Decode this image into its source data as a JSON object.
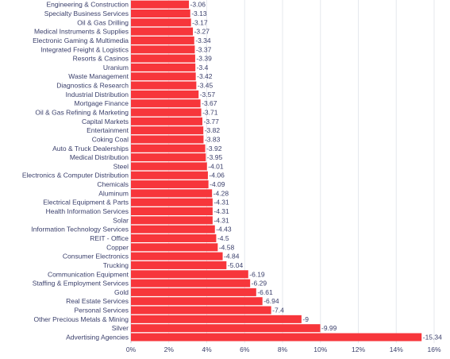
{
  "chart_data": {
    "type": "bar",
    "orientation": "horizontal",
    "categories": [
      "Engineering & Construction",
      "Specialty Business Services",
      "Oil & Gas Drilling",
      "Medical Instruments & Supplies",
      "Electronic Gaming & Multimedia",
      "Integrated Freight & Logistics",
      "Resorts & Casinos",
      "Uranium",
      "Waste Management",
      "Diagnostics & Research",
      "Industrial Distribution",
      "Mortgage Finance",
      "Oil & Gas Refining & Marketing",
      "Capital Markets",
      "Entertainment",
      "Coking Coal",
      "Auto & Truck Dealerships",
      "Medical Distribution",
      "Steel",
      "Electronics & Computer Distribution",
      "Chemicals",
      "Aluminum",
      "Electrical Equipment & Parts",
      "Health Information Services",
      "Solar",
      "Information Technology Services",
      "REIT - Office",
      "Copper",
      "Consumer Electronics",
      "Trucking",
      "Communication Equipment",
      "Staffing & Employment Services",
      "Gold",
      "Real Estate Services",
      "Personal Services",
      "Other Precious Metals & Mining",
      "Silver",
      "Advertising Agencies"
    ],
    "values": [
      -3.06,
      -3.13,
      -3.17,
      -3.27,
      -3.34,
      -3.37,
      -3.39,
      -3.4,
      -3.42,
      -3.45,
      -3.57,
      -3.67,
      -3.71,
      -3.77,
      -3.82,
      -3.83,
      -3.92,
      -3.95,
      -4.01,
      -4.06,
      -4.09,
      -4.28,
      -4.31,
      -4.31,
      -4.31,
      -4.43,
      -4.5,
      -4.58,
      -4.84,
      -5.04,
      -6.19,
      -6.29,
      -6.61,
      -6.94,
      -7.4,
      -9,
      -9.99,
      -15.34
    ],
    "value_labels": [
      "-3.06",
      "-3.13",
      "-3.17",
      "-3.27",
      "-3.34",
      "-3.37",
      "-3.39",
      "-3.4",
      "-3.42",
      "-3.45",
      "-3.57",
      "-3.67",
      "-3.71",
      "-3.77",
      "-3.82",
      "-3.83",
      "-3.92",
      "-3.95",
      "-4.01",
      "-4.06",
      "-4.09",
      "-4.28",
      "-4.31",
      "-4.31",
      "-4.31",
      "-4.43",
      "-4.5",
      "-4.58",
      "-4.84",
      "-5.04",
      "-6.19",
      "-6.29",
      "-6.61",
      "-6.94",
      "-7.4",
      "-9",
      "-9.99",
      "-15.34"
    ],
    "x_ticks": [
      "0%",
      "2%",
      "4%",
      "6%",
      "8%",
      "10%",
      "12%",
      "14%",
      "16%"
    ],
    "xlim": [
      0,
      16
    ],
    "bar_length": "absolute value",
    "grid": "vertical",
    "legend": "none",
    "title": "",
    "xlabel": "",
    "ylabel": ""
  },
  "colors": {
    "bar": "#f7363b",
    "text": "#3a3f6b",
    "grid": "#e6e8ee",
    "axis": "#c9ccd6"
  }
}
